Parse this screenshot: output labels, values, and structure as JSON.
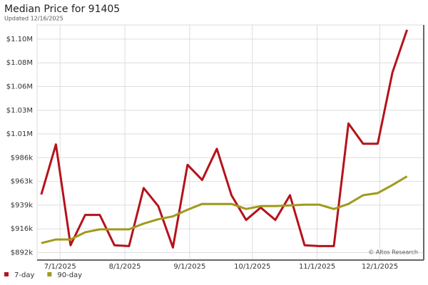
{
  "chart_data": {
    "type": "line",
    "title": "Median Price for 91405",
    "subtitle": "Updated 12/16/2025",
    "annotation": "© Altos Research",
    "x": [
      "2025-06-22",
      "2025-06-29",
      "2025-07-06",
      "2025-07-13",
      "2025-07-20",
      "2025-07-27",
      "2025-08-03",
      "2025-08-10",
      "2025-08-17",
      "2025-08-24",
      "2025-08-31",
      "2025-09-07",
      "2025-09-14",
      "2025-09-21",
      "2025-09-28",
      "2025-10-05",
      "2025-10-12",
      "2025-10-19",
      "2025-10-26",
      "2025-11-02",
      "2025-11-09",
      "2025-11-16",
      "2025-11-23",
      "2025-11-30",
      "2025-12-07",
      "2025-12-14"
    ],
    "series": [
      {
        "name": "7-day",
        "color": "#b5121b",
        "values": [
          949700,
          999100,
          899600,
          929600,
          929600,
          899600,
          898800,
          956100,
          938200,
          897400,
          979000,
          964000,
          994800,
          949000,
          924600,
          936800,
          924600,
          949000,
          899600,
          898800,
          898800,
          1019800,
          999800,
          999800,
          1070000,
          1112200
        ]
      },
      {
        "name": "90-day",
        "color": "#a09a1b",
        "values": [
          901700,
          905300,
          905300,
          912400,
          915300,
          915300,
          915300,
          921000,
          925300,
          928200,
          934600,
          940400,
          940400,
          940400,
          935400,
          938200,
          938200,
          938900,
          939700,
          939700,
          935400,
          940400,
          949000,
          951100,
          959000,
          967600
        ]
      }
    ],
    "xlim": [
      "2025-06-20",
      "2025-12-22"
    ],
    "xticks": [
      {
        "value": "2025-07-01",
        "label": "7/1/2025"
      },
      {
        "value": "2025-08-01",
        "label": "8/1/2025"
      },
      {
        "value": "2025-09-01",
        "label": "9/1/2025"
      },
      {
        "value": "2025-10-01",
        "label": "10/1/2025"
      },
      {
        "value": "2025-11-01",
        "label": "11/1/2025"
      },
      {
        "value": "2025-12-01",
        "label": "12/1/2025"
      }
    ],
    "ylim": [
      885000,
      1117000
    ],
    "yticks": [
      {
        "value": 892400,
        "label": "$892k"
      },
      {
        "value": 915800,
        "label": "$916k"
      },
      {
        "value": 939200,
        "label": "$939k"
      },
      {
        "value": 962600,
        "label": "$963k"
      },
      {
        "value": 986000,
        "label": "$986k"
      },
      {
        "value": 1009400,
        "label": "$1.01M"
      },
      {
        "value": 1032800,
        "label": "$1.03M"
      },
      {
        "value": 1056200,
        "label": "$1.06M"
      },
      {
        "value": 1079600,
        "label": "$1.08M"
      },
      {
        "value": 1103000,
        "label": "$1.10M"
      }
    ],
    "grid": true,
    "legend": "bottom-left"
  }
}
